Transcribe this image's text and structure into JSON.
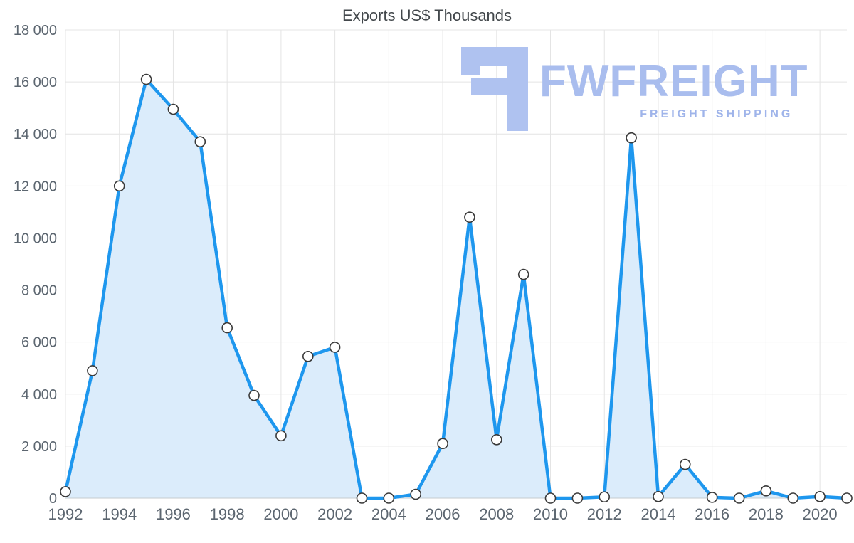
{
  "title": "Exports US$ Thousands",
  "logo": {
    "brand": "FWFREIGHT",
    "tagline": "FREIGHT SHIPPING",
    "color": "#a9bdee"
  },
  "colors": {
    "line": "#1e97ee",
    "fill": "#dbecfb",
    "marker_fill": "#ffffff",
    "marker_stroke": "#3a3a3a",
    "grid": "#e4e4e4",
    "axis_line": "#c6cbcf",
    "axis_text": "#5c6670",
    "title_text": "#42474b"
  },
  "chart_data": {
    "type": "area",
    "title": "Exports US$ Thousands",
    "xlabel": "",
    "ylabel": "",
    "x": [
      1992,
      1993,
      1994,
      1995,
      1996,
      1997,
      1998,
      1999,
      2000,
      2001,
      2002,
      2003,
      2004,
      2005,
      2006,
      2007,
      2008,
      2009,
      2010,
      2011,
      2012,
      2013,
      2014,
      2015,
      2016,
      2017,
      2018,
      2019,
      2020,
      2021
    ],
    "values": [
      250,
      4900,
      12000,
      16100,
      14950,
      13700,
      6550,
      3950,
      2400,
      5450,
      5800,
      0,
      0,
      150,
      2100,
      10800,
      2250,
      8600,
      0,
      0,
      50,
      13850,
      60,
      1300,
      30,
      0,
      280,
      0,
      60,
      0
    ],
    "ylim": [
      0,
      18000
    ],
    "yticks": [
      0,
      2000,
      4000,
      6000,
      8000,
      10000,
      12000,
      14000,
      16000,
      18000
    ],
    "ytick_labels": [
      "0",
      "2 000",
      "4 000",
      "6 000",
      "8 000",
      "10 000",
      "12 000",
      "14 000",
      "16 000",
      "18 000"
    ],
    "xticks": [
      1992,
      1994,
      1996,
      1998,
      2000,
      2002,
      2004,
      2006,
      2008,
      2010,
      2012,
      2014,
      2016,
      2018,
      2020
    ],
    "xtick_labels": [
      "1992",
      "1994",
      "1996",
      "1998",
      "2000",
      "2002",
      "2004",
      "2006",
      "2008",
      "2010",
      "2012",
      "2014",
      "2016",
      "2018",
      "2020"
    ],
    "grid": true,
    "legend": false,
    "marker": "circle"
  }
}
